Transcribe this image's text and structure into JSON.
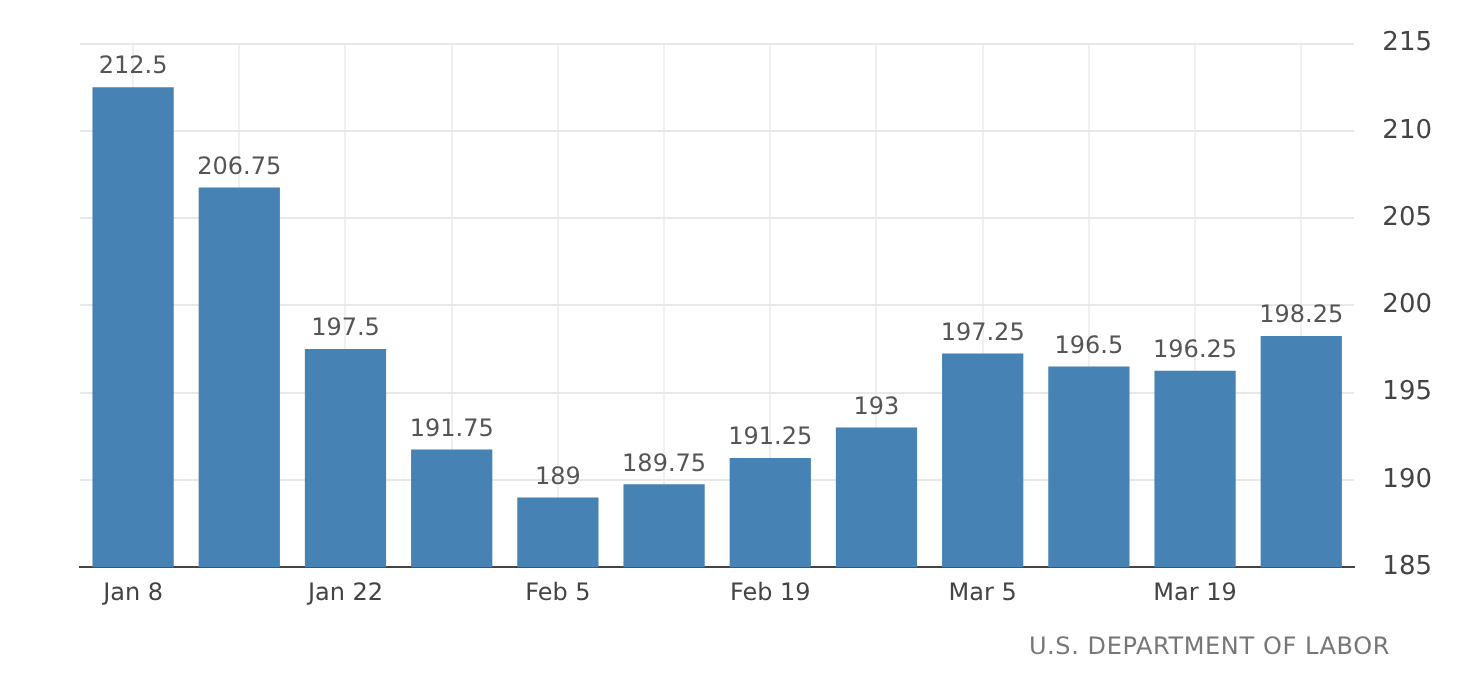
{
  "chart_data": {
    "type": "bar",
    "categories": [
      "Jan 8",
      null,
      "Jan 22",
      null,
      "Feb 5",
      null,
      "Feb 19",
      null,
      "Mar 5",
      null,
      "Mar 19",
      null
    ],
    "values": [
      212.5,
      206.75,
      197.5,
      191.75,
      189,
      189.75,
      191.25,
      193,
      197.25,
      196.5,
      196.25,
      198.25
    ],
    "color": "#4682b4",
    "ylim": [
      185,
      215
    ],
    "yticks": [
      185,
      190,
      195,
      200,
      205,
      210,
      215
    ],
    "grid": true,
    "data_labels": true,
    "annotations": [
      "U.S. DEPARTMENT OF LABOR"
    ]
  }
}
